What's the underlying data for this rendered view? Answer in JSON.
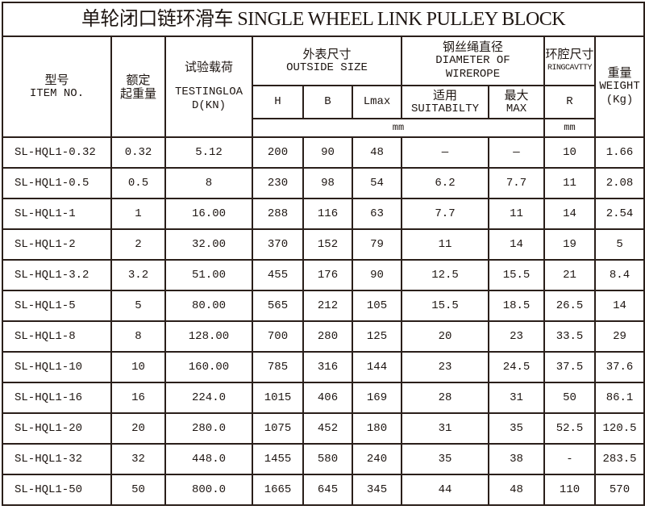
{
  "title": "单轮闭口链环滑车  SINGLE WHEEL LINK PULLEY BLOCK",
  "headers": {
    "item_no_cn": "型号",
    "item_no_en": "ITEM NO.",
    "rated_cn_1": "额定",
    "rated_cn_2": "起重量",
    "test_load_cn": "试验载荷",
    "test_load_en_1": "TESTINGLOA",
    "test_load_en_2": "D(KN)",
    "outside_cn": "外表尺寸",
    "outside_en": "OUTSIDE SIZE",
    "wirerope_cn": "钢丝绳直径",
    "wirerope_en_1": "DIAMETER OF",
    "wirerope_en_2": "WIREROPE",
    "ring_cn": "环腔尺寸",
    "ring_en": "RINGCAVTTY",
    "weight_cn": "重量",
    "weight_en_1": "WEIGHT",
    "weight_en_2": "(Kg)",
    "h": "H",
    "b": "B",
    "lmax": "Lmax",
    "suit_cn": "适用",
    "suit_en": "SUITABILTY",
    "max_cn": "最大",
    "max_en": "MAX",
    "r": "R",
    "unit_mm_1": "mm",
    "unit_mm_2": "mm"
  },
  "rows": [
    [
      "SL-HQL1-0.32",
      "0.32",
      "5.12",
      "200",
      "90",
      "48",
      "—",
      "—",
      "10",
      "1.66"
    ],
    [
      "SL-HQL1-0.5",
      "0.5",
      "8",
      "230",
      "98",
      "54",
      "6.2",
      "7.7",
      "11",
      "2.08"
    ],
    [
      "SL-HQL1-1",
      "1",
      "16.00",
      "288",
      "116",
      "63",
      "7.7",
      "11",
      "14",
      "2.54"
    ],
    [
      "SL-HQL1-2",
      "2",
      "32.00",
      "370",
      "152",
      "79",
      "11",
      "14",
      "19",
      "5"
    ],
    [
      "SL-HQL1-3.2",
      "3.2",
      "51.00",
      "455",
      "176",
      "90",
      "12.5",
      "15.5",
      "21",
      "8.4"
    ],
    [
      "SL-HQL1-5",
      "5",
      "80.00",
      "565",
      "212",
      "105",
      "15.5",
      "18.5",
      "26.5",
      "14"
    ],
    [
      "SL-HQL1-8",
      "8",
      "128.00",
      "700",
      "280",
      "125",
      "20",
      "23",
      "33.5",
      "29"
    ],
    [
      "SL-HQL1-10",
      "10",
      "160.00",
      "785",
      "316",
      "144",
      "23",
      "24.5",
      "37.5",
      "37.6"
    ],
    [
      "SL-HQL1-16",
      "16",
      "224.0",
      "1015",
      "406",
      "169",
      "28",
      "31",
      "50",
      "86.1"
    ],
    [
      "SL-HQL1-20",
      "20",
      "280.0",
      "1075",
      "452",
      "180",
      "31",
      "35",
      "52.5",
      "120.5"
    ],
    [
      "SL-HQL1-32",
      "32",
      "448.0",
      "1455",
      "580",
      "240",
      "35",
      "38",
      "-",
      "283.5"
    ],
    [
      "SL-HQL1-50",
      "50",
      "800.0",
      "1665",
      "645",
      "345",
      "44",
      "48",
      "110",
      "570"
    ]
  ]
}
